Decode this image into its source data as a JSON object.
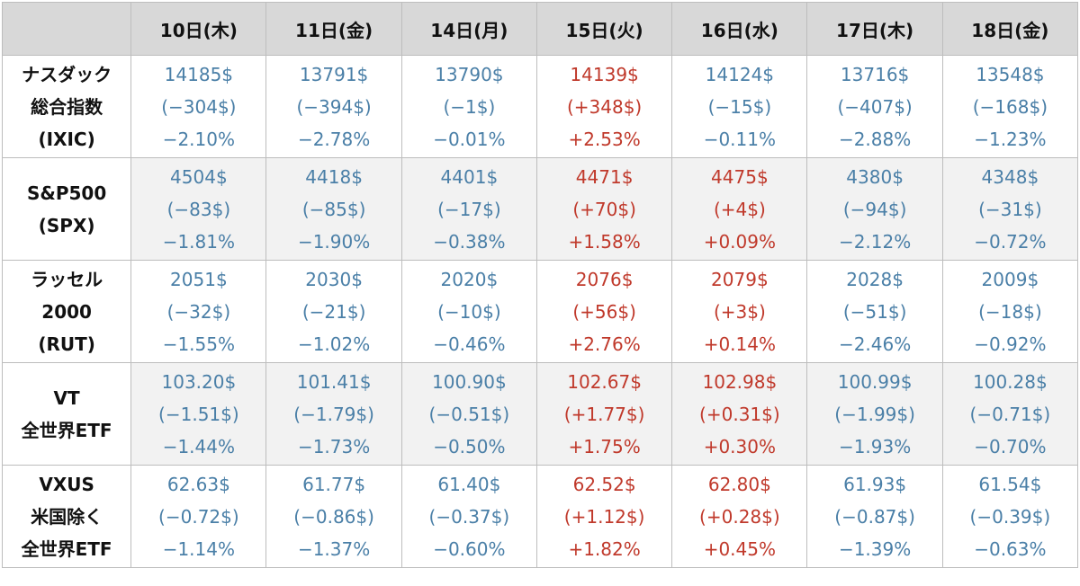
{
  "columns": [
    "10日(木)",
    "11日(金)",
    "14日(月)",
    "15日(火)",
    "16日(水)",
    "17日(木)",
    "18日(金)"
  ],
  "colors": {
    "down": "#4a7fa7",
    "up": "#c0392b",
    "header_bg": "#d8d8d8"
  },
  "rows": [
    {
      "label": [
        "ナスダック",
        "総合指数",
        "(IXIC)"
      ],
      "cells": [
        {
          "price": "14185$",
          "change": "(−304$)",
          "pct": "−2.10%",
          "dir": "down"
        },
        {
          "price": "13791$",
          "change": "(−394$)",
          "pct": "−2.78%",
          "dir": "down"
        },
        {
          "price": "13790$",
          "change": "(−1$)",
          "pct": "−0.01%",
          "dir": "down"
        },
        {
          "price": "14139$",
          "change": "(+348$)",
          "pct": "+2.53%",
          "dir": "up"
        },
        {
          "price": "14124$",
          "change": "(−15$)",
          "pct": "−0.11%",
          "dir": "down"
        },
        {
          "price": "13716$",
          "change": "(−407$)",
          "pct": "−2.88%",
          "dir": "down"
        },
        {
          "price": "13548$",
          "change": "(−168$)",
          "pct": "−1.23%",
          "dir": "down"
        }
      ]
    },
    {
      "label": [
        "S&P500",
        "(SPX)"
      ],
      "cells": [
        {
          "price": "4504$",
          "change": "(−83$)",
          "pct": "−1.81%",
          "dir": "down"
        },
        {
          "price": "4418$",
          "change": "(−85$)",
          "pct": "−1.90%",
          "dir": "down"
        },
        {
          "price": "4401$",
          "change": "(−17$)",
          "pct": "−0.38%",
          "dir": "down"
        },
        {
          "price": "4471$",
          "change": "(+70$)",
          "pct": "+1.58%",
          "dir": "up"
        },
        {
          "price": "4475$",
          "change": "(+4$)",
          "pct": "+0.09%",
          "dir": "up"
        },
        {
          "price": "4380$",
          "change": "(−94$)",
          "pct": "−2.12%",
          "dir": "down"
        },
        {
          "price": "4348$",
          "change": "(−31$)",
          "pct": "−0.72%",
          "dir": "down"
        }
      ]
    },
    {
      "label": [
        "ラッセル",
        "2000",
        "(RUT)"
      ],
      "cells": [
        {
          "price": "2051$",
          "change": "(−32$)",
          "pct": "−1.55%",
          "dir": "down"
        },
        {
          "price": "2030$",
          "change": "(−21$)",
          "pct": "−1.02%",
          "dir": "down"
        },
        {
          "price": "2020$",
          "change": "(−10$)",
          "pct": "−0.46%",
          "dir": "down"
        },
        {
          "price": "2076$",
          "change": "(+56$)",
          "pct": "+2.76%",
          "dir": "up"
        },
        {
          "price": "2079$",
          "change": "(+3$)",
          "pct": "+0.14%",
          "dir": "up"
        },
        {
          "price": "2028$",
          "change": "(−51$)",
          "pct": "−2.46%",
          "dir": "down"
        },
        {
          "price": "2009$",
          "change": "(−18$)",
          "pct": "−0.92%",
          "dir": "down"
        }
      ]
    },
    {
      "label": [
        "VT",
        "全世界ETF"
      ],
      "cells": [
        {
          "price": "103.20$",
          "change": "(−1.51$)",
          "pct": "−1.44%",
          "dir": "down"
        },
        {
          "price": "101.41$",
          "change": "(−1.79$)",
          "pct": "−1.73%",
          "dir": "down"
        },
        {
          "price": "100.90$",
          "change": "(−0.51$)",
          "pct": "−0.50%",
          "dir": "down"
        },
        {
          "price": "102.67$",
          "change": "(+1.77$)",
          "pct": "+1.75%",
          "dir": "up"
        },
        {
          "price": "102.98$",
          "change": "(+0.31$)",
          "pct": "+0.30%",
          "dir": "up"
        },
        {
          "price": "100.99$",
          "change": "(−1.99$)",
          "pct": "−1.93%",
          "dir": "down"
        },
        {
          "price": "100.28$",
          "change": "(−0.71$)",
          "pct": "−0.70%",
          "dir": "down"
        }
      ]
    },
    {
      "label": [
        "VXUS",
        "米国除く",
        "全世界ETF"
      ],
      "cells": [
        {
          "price": "62.63$",
          "change": "(−0.72$)",
          "pct": "−1.14%",
          "dir": "down"
        },
        {
          "price": "61.77$",
          "change": "(−0.86$)",
          "pct": "−1.37%",
          "dir": "down"
        },
        {
          "price": "61.40$",
          "change": "(−0.37$)",
          "pct": "−0.60%",
          "dir": "down"
        },
        {
          "price": "62.52$",
          "change": "(+1.12$)",
          "pct": "+1.82%",
          "dir": "up"
        },
        {
          "price": "62.80$",
          "change": "(+0.28$)",
          "pct": "+0.45%",
          "dir": "up"
        },
        {
          "price": "61.93$",
          "change": "(−0.87$)",
          "pct": "−1.39%",
          "dir": "down"
        },
        {
          "price": "61.54$",
          "change": "(−0.39$)",
          "pct": "−0.63%",
          "dir": "down"
        }
      ]
    }
  ]
}
